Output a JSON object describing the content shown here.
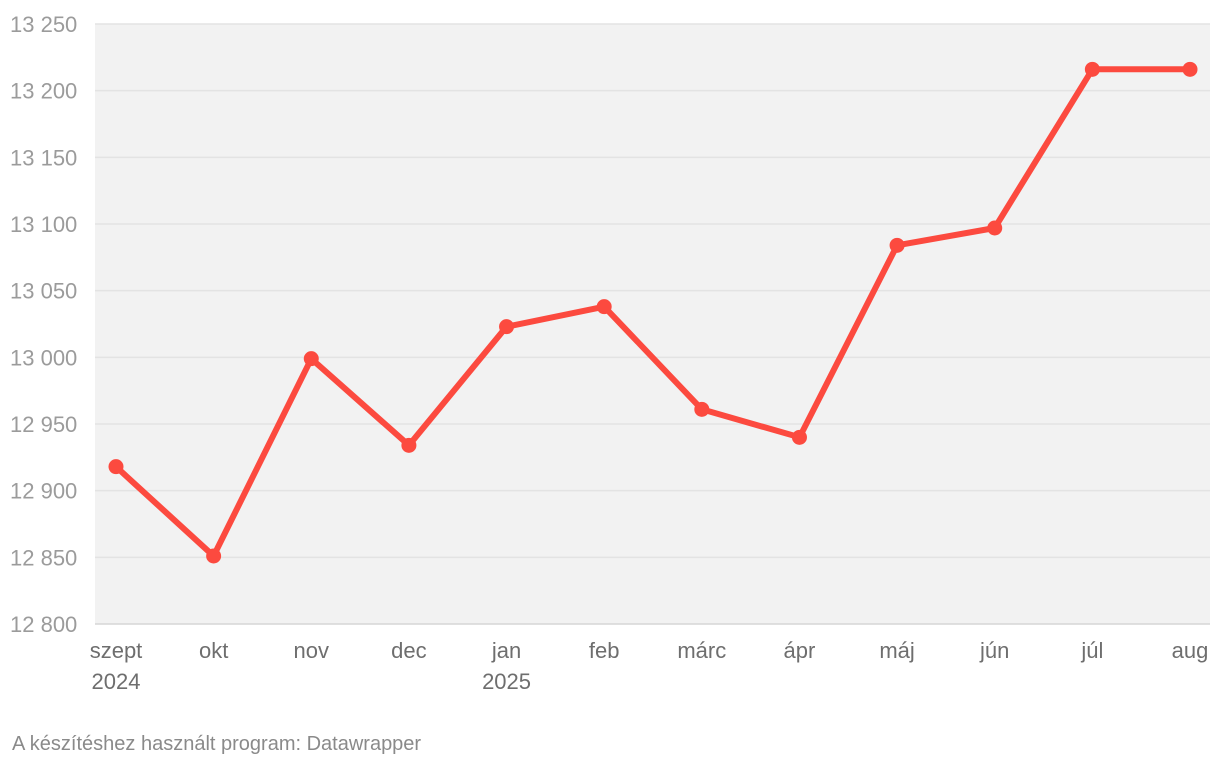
{
  "chart_data": {
    "type": "line",
    "x": [
      "szept 2024",
      "okt",
      "nov",
      "dec",
      "jan 2025",
      "feb",
      "márc",
      "ápr",
      "máj",
      "jún",
      "júl",
      "aug"
    ],
    "x_tick_labels": [
      [
        "szept",
        "2024"
      ],
      [
        "okt"
      ],
      [
        "nov"
      ],
      [
        "dec"
      ],
      [
        "jan",
        "2025"
      ],
      [
        "feb"
      ],
      [
        "márc"
      ],
      [
        "ápr"
      ],
      [
        "máj"
      ],
      [
        "jún"
      ],
      [
        "júl"
      ],
      [
        "aug"
      ]
    ],
    "series": [
      {
        "values": [
          12918,
          12851,
          12999,
          12934,
          13023,
          13038,
          12961,
          12940,
          13084,
          13097,
          13216,
          13216
        ],
        "color": "#fc4a3f"
      }
    ],
    "ylim": [
      12800,
      13250
    ],
    "y_ticks": [
      12800,
      12850,
      12900,
      12950,
      13000,
      13050,
      13100,
      13150,
      13200,
      13250
    ],
    "y_tick_labels": [
      "12 800",
      "12 850",
      "12 900",
      "12 950",
      "13 000",
      "13 050",
      "13 100",
      "13 150",
      "13 200",
      "13 250"
    ],
    "grid": true,
    "plot_background": "#f2f2f2",
    "title": "",
    "xlabel": "",
    "ylabel": ""
  },
  "footer": {
    "credit": "A készítéshez használt program: Datawrapper"
  }
}
